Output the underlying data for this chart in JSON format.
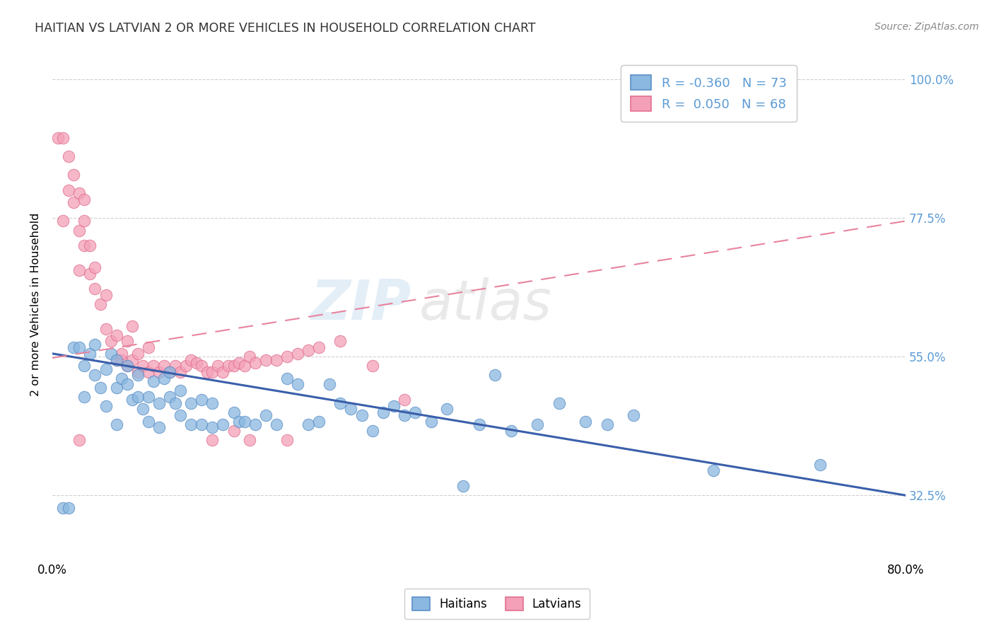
{
  "title": "HAITIAN VS LATVIAN 2 OR MORE VEHICLES IN HOUSEHOLD CORRELATION CHART",
  "source": "Source: ZipAtlas.com",
  "ylabel": "2 or more Vehicles in Household",
  "ytick_labels": [
    "32.5%",
    "55.0%",
    "77.5%",
    "100.0%"
  ],
  "ytick_values": [
    0.325,
    0.55,
    0.775,
    1.0
  ],
  "bottom_legend": [
    "Haitians",
    "Latvians"
  ],
  "watermark_zip": "ZIP",
  "watermark_atlas": "atlas",
  "blue_label": "R = -0.360   N = 73",
  "pink_label": "R =  0.050   N = 68",
  "blue_scatter": "#8ab8e0",
  "blue_edge": "#5b8fc7",
  "pink_scatter": "#f4a0b8",
  "pink_edge": "#e07090",
  "blue_trend": "#3a5faa",
  "pink_trend": "#e8839e",
  "tick_color": "#5b9bd5",
  "xmin": 0.0,
  "xmax": 0.8,
  "ymin": 0.22,
  "ymax": 1.05,
  "blue_trend_x": [
    0.0,
    0.8
  ],
  "blue_trend_y": [
    0.555,
    0.325
  ],
  "pink_trend_x": [
    0.0,
    0.8
  ],
  "pink_trend_y": [
    0.548,
    0.77
  ],
  "haitians_x": [
    0.01,
    0.015,
    0.02,
    0.025,
    0.03,
    0.03,
    0.035,
    0.04,
    0.04,
    0.045,
    0.05,
    0.05,
    0.055,
    0.06,
    0.06,
    0.06,
    0.065,
    0.07,
    0.07,
    0.075,
    0.08,
    0.08,
    0.085,
    0.09,
    0.09,
    0.095,
    0.1,
    0.1,
    0.105,
    0.11,
    0.11,
    0.115,
    0.12,
    0.12,
    0.13,
    0.13,
    0.14,
    0.14,
    0.15,
    0.15,
    0.16,
    0.17,
    0.175,
    0.18,
    0.19,
    0.2,
    0.21,
    0.22,
    0.23,
    0.24,
    0.25,
    0.26,
    0.27,
    0.28,
    0.29,
    0.3,
    0.31,
    0.32,
    0.33,
    0.34,
    0.355,
    0.37,
    0.385,
    0.4,
    0.415,
    0.43,
    0.455,
    0.475,
    0.5,
    0.52,
    0.545,
    0.62,
    0.72
  ],
  "haitians_y": [
    0.305,
    0.305,
    0.565,
    0.565,
    0.485,
    0.535,
    0.555,
    0.52,
    0.57,
    0.5,
    0.47,
    0.53,
    0.555,
    0.44,
    0.5,
    0.545,
    0.515,
    0.505,
    0.535,
    0.48,
    0.485,
    0.52,
    0.465,
    0.445,
    0.485,
    0.51,
    0.435,
    0.475,
    0.515,
    0.485,
    0.525,
    0.475,
    0.455,
    0.495,
    0.44,
    0.475,
    0.44,
    0.48,
    0.435,
    0.475,
    0.44,
    0.46,
    0.445,
    0.445,
    0.44,
    0.455,
    0.44,
    0.515,
    0.505,
    0.44,
    0.445,
    0.505,
    0.475,
    0.465,
    0.455,
    0.43,
    0.46,
    0.47,
    0.455,
    0.46,
    0.445,
    0.465,
    0.34,
    0.44,
    0.52,
    0.43,
    0.44,
    0.475,
    0.445,
    0.44,
    0.455,
    0.365,
    0.375
  ],
  "latvians_x": [
    0.005,
    0.01,
    0.01,
    0.015,
    0.015,
    0.02,
    0.02,
    0.025,
    0.025,
    0.03,
    0.03,
    0.03,
    0.035,
    0.035,
    0.04,
    0.04,
    0.045,
    0.05,
    0.05,
    0.055,
    0.06,
    0.06,
    0.065,
    0.07,
    0.07,
    0.075,
    0.08,
    0.08,
    0.085,
    0.09,
    0.09,
    0.095,
    0.1,
    0.105,
    0.11,
    0.115,
    0.12,
    0.125,
    0.13,
    0.135,
    0.14,
    0.145,
    0.15,
    0.155,
    0.16,
    0.165,
    0.17,
    0.175,
    0.18,
    0.185,
    0.19,
    0.2,
    0.21,
    0.22,
    0.23,
    0.24,
    0.25,
    0.27,
    0.3,
    0.33,
    0.185,
    0.15,
    0.17,
    0.22,
    0.065,
    0.075,
    0.025,
    0.025
  ],
  "latvians_y": [
    0.905,
    0.77,
    0.905,
    0.82,
    0.875,
    0.8,
    0.845,
    0.755,
    0.815,
    0.73,
    0.77,
    0.805,
    0.685,
    0.73,
    0.66,
    0.695,
    0.635,
    0.595,
    0.65,
    0.575,
    0.545,
    0.585,
    0.545,
    0.535,
    0.575,
    0.545,
    0.525,
    0.555,
    0.535,
    0.525,
    0.565,
    0.535,
    0.525,
    0.535,
    0.525,
    0.535,
    0.525,
    0.535,
    0.545,
    0.54,
    0.535,
    0.525,
    0.525,
    0.535,
    0.525,
    0.535,
    0.535,
    0.54,
    0.535,
    0.55,
    0.54,
    0.545,
    0.545,
    0.55,
    0.555,
    0.56,
    0.565,
    0.575,
    0.535,
    0.48,
    0.415,
    0.415,
    0.43,
    0.415,
    0.555,
    0.6,
    0.69,
    0.415
  ]
}
